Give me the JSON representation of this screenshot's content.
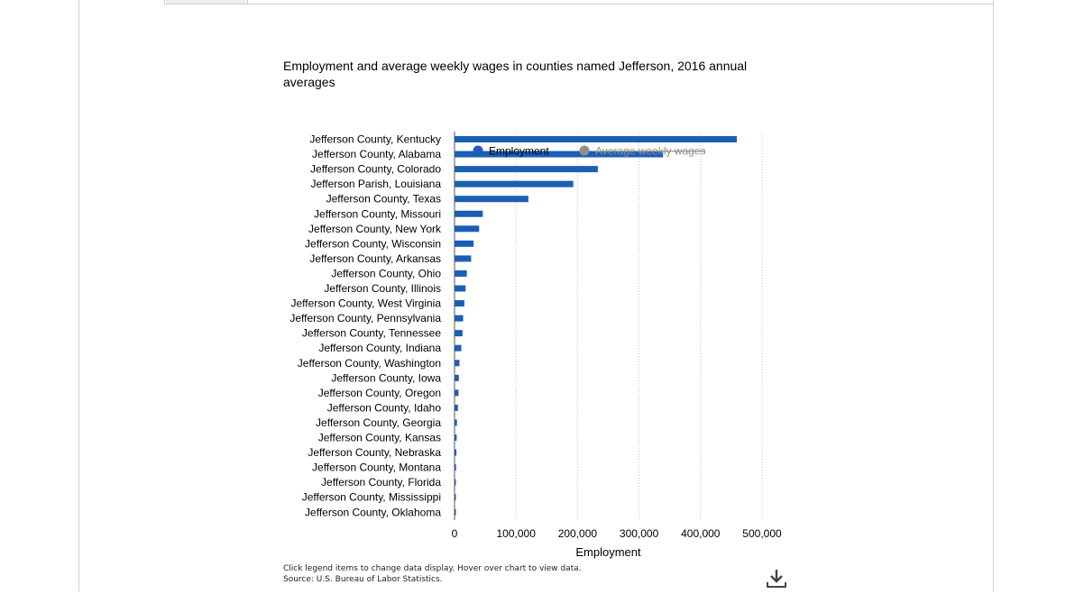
{
  "chart_data": {
    "type": "bar",
    "orientation": "horizontal",
    "title": "Employment and average weekly wages in counties named Jefferson, 2016 annual averages",
    "xlabel": "Employment",
    "xlim": [
      0,
      500000
    ],
    "xticks": [
      0,
      100000,
      200000,
      300000,
      400000,
      500000
    ],
    "xtick_labels": [
      "0",
      "100,000",
      "200,000",
      "300,000",
      "400,000",
      "500,000"
    ],
    "grid": "vertical dotted",
    "legend": {
      "placement": "top",
      "items": [
        {
          "label": "Employment",
          "color": "#1a5fb4",
          "active": true
        },
        {
          "label": "Average weekly wages",
          "color": "#8f8f8f",
          "active": false
        }
      ]
    },
    "categories": [
      "Jefferson County, Kentucky",
      "Jefferson County, Alabama",
      "Jefferson County, Colorado",
      "Jefferson Parish, Louisiana",
      "Jefferson County, Texas",
      "Jefferson County, Missouri",
      "Jefferson County, New York",
      "Jefferson County, Wisconsin",
      "Jefferson County, Arkansas",
      "Jefferson County, Ohio",
      "Jefferson County, Illinois",
      "Jefferson County, West Virginia",
      "Jefferson County, Pennsylvania",
      "Jefferson County, Tennessee",
      "Jefferson County, Indiana",
      "Jefferson County, Washington",
      "Jefferson County, Iowa",
      "Jefferson County, Oregon",
      "Jefferson County, Idaho",
      "Jefferson County, Georgia",
      "Jefferson County, Kansas",
      "Jefferson County, Nebraska",
      "Jefferson County, Montana",
      "Jefferson County, Florida",
      "Jefferson County, Mississippi",
      "Jefferson County, Oklahoma"
    ],
    "series": [
      {
        "name": "Employment",
        "color": "#1a5fb4",
        "values": [
          459000,
          339000,
          233000,
          193000,
          120000,
          46000,
          40000,
          31000,
          27000,
          20000,
          18000,
          16000,
          14000,
          13000,
          11000,
          8000,
          7000,
          6500,
          5500,
          4000,
          3500,
          3000,
          2500,
          2000,
          1800,
          1500
        ]
      }
    ]
  },
  "footer": {
    "note": "Click legend items to change data display. Hover over chart to view data.",
    "source": "Source: U.S. Bureau of Labor Statistics."
  },
  "icons": {
    "download": "download-icon"
  }
}
